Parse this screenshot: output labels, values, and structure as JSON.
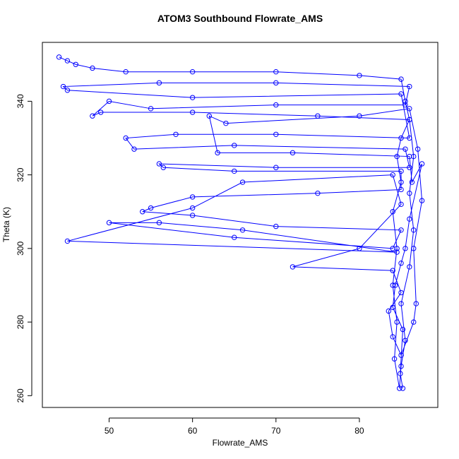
{
  "chart_data": {
    "type": "line",
    "title": "ATOM3 Southbound Flowrate_AMS",
    "xlabel": "Flowrate_AMS",
    "ylabel": "Theta (K)",
    "color": "#0000ff",
    "markers": true,
    "xlim": [
      42,
      89.4
    ],
    "ylim": [
      256.8,
      356
    ],
    "xticks": [
      50,
      60,
      70,
      80
    ],
    "yticks": [
      260,
      280,
      300,
      320,
      340
    ],
    "x": [
      44,
      45,
      46,
      48,
      52,
      60,
      70,
      80,
      85,
      85.5,
      86,
      85,
      84.5,
      85,
      84,
      84.5,
      84,
      84.5,
      84.2,
      84.8,
      85,
      85.5,
      85,
      86,
      86.5,
      86,
      86.5,
      86,
      75,
      60,
      49,
      48,
      50,
      55,
      70,
      85.5,
      86,
      70,
      56,
      44.5,
      45,
      60,
      85,
      86,
      70,
      58,
      52,
      53,
      65,
      85.5,
      86,
      70,
      56,
      56.5,
      65,
      85,
      85,
      75,
      60,
      55,
      54,
      60,
      70,
      85,
      84,
      65,
      50,
      56,
      66,
      84.5,
      45,
      60,
      66,
      84,
      85,
      80,
      72,
      84,
      85,
      83.5,
      84,
      85,
      86.5,
      86.8,
      86.5,
      87.5,
      87,
      86,
      80,
      64,
      62,
      63,
      72,
      86,
      86.3,
      87.5,
      86,
      85.5,
      85,
      84.3,
      84,
      85.2,
      84.9,
      85.2
    ],
    "values": [
      352,
      351,
      350,
      349,
      348,
      348,
      348,
      347,
      346,
      340,
      335,
      330,
      325,
      318,
      310,
      300,
      290,
      280,
      270,
      262,
      268,
      275,
      285,
      295,
      305,
      315,
      325,
      335,
      336,
      337,
      337,
      336,
      340,
      338,
      339,
      339,
      344,
      345,
      345,
      344,
      343,
      341,
      342,
      330,
      331,
      331,
      330,
      327,
      328,
      327,
      322,
      322,
      323,
      322,
      321,
      321,
      316,
      315,
      314,
      311,
      310,
      309,
      306,
      305,
      300,
      303,
      307,
      307,
      305,
      299,
      302,
      311,
      318,
      320,
      312,
      300,
      295,
      294,
      288,
      283,
      276,
      271,
      280,
      285,
      300,
      313,
      327,
      338,
      336,
      334,
      336,
      326,
      326,
      325,
      318,
      323,
      308,
      300,
      296,
      290,
      284,
      278,
      266,
      262
    ]
  }
}
